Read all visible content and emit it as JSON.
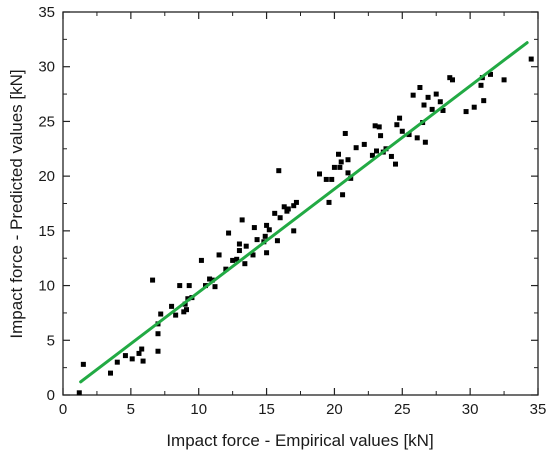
{
  "chart_data": {
    "type": "scatter",
    "xlabel": "Impact force - Empirical values [kN]",
    "ylabel": "Impact force - Predicted values [kN]",
    "xlim": [
      0,
      35
    ],
    "ylim": [
      0,
      35
    ],
    "xticks": [
      "0",
      "5",
      "10",
      "15",
      "20",
      "25",
      "30",
      "35"
    ],
    "yticks": [
      "0",
      "5",
      "10",
      "15",
      "20",
      "25",
      "30",
      "35"
    ],
    "grid": false,
    "marker_color": "#000000",
    "fit_line_color": "#22aa44",
    "fit_line": {
      "x": [
        1.3,
        34.2
      ],
      "y": [
        1.2,
        32.2
      ]
    },
    "points": [
      [
        1.2,
        0.2
      ],
      [
        1.5,
        2.8
      ],
      [
        3.5,
        2.0
      ],
      [
        4.0,
        3.0
      ],
      [
        4.6,
        3.6
      ],
      [
        5.1,
        3.3
      ],
      [
        5.6,
        3.8
      ],
      [
        5.8,
        4.2
      ],
      [
        5.9,
        3.1
      ],
      [
        6.6,
        10.5
      ],
      [
        7.0,
        5.6
      ],
      [
        7.0,
        4.0
      ],
      [
        7.0,
        6.5
      ],
      [
        7.2,
        7.4
      ],
      [
        8.0,
        8.1
      ],
      [
        8.3,
        7.3
      ],
      [
        8.6,
        10.0
      ],
      [
        8.9,
        7.6
      ],
      [
        9.0,
        8.3
      ],
      [
        9.1,
        7.8
      ],
      [
        9.2,
        8.8
      ],
      [
        9.3,
        10.0
      ],
      [
        9.5,
        8.9
      ],
      [
        10.2,
        12.3
      ],
      [
        10.5,
        10.0
      ],
      [
        10.8,
        10.6
      ],
      [
        11.0,
        10.5
      ],
      [
        11.2,
        9.9
      ],
      [
        11.5,
        12.8
      ],
      [
        12.0,
        11.5
      ],
      [
        12.2,
        14.8
      ],
      [
        12.5,
        12.3
      ],
      [
        12.8,
        12.4
      ],
      [
        13.0,
        13.2
      ],
      [
        13.0,
        13.8
      ],
      [
        13.2,
        16.0
      ],
      [
        13.4,
        12.0
      ],
      [
        13.5,
        13.6
      ],
      [
        14.0,
        12.8
      ],
      [
        14.1,
        15.3
      ],
      [
        14.3,
        14.2
      ],
      [
        14.8,
        14.0
      ],
      [
        14.9,
        14.5
      ],
      [
        15.0,
        13.0
      ],
      [
        15.0,
        15.5
      ],
      [
        15.2,
        15.1
      ],
      [
        15.6,
        16.6
      ],
      [
        15.8,
        14.1
      ],
      [
        15.9,
        20.5
      ],
      [
        16.0,
        16.2
      ],
      [
        16.3,
        17.2
      ],
      [
        16.5,
        16.8
      ],
      [
        16.6,
        17.0
      ],
      [
        17.0,
        15.0
      ],
      [
        17.0,
        17.3
      ],
      [
        17.2,
        17.6
      ],
      [
        18.9,
        20.2
      ],
      [
        19.4,
        19.7
      ],
      [
        19.6,
        17.6
      ],
      [
        19.8,
        19.7
      ],
      [
        20.0,
        20.8
      ],
      [
        20.3,
        22.0
      ],
      [
        20.4,
        20.8
      ],
      [
        20.5,
        21.3
      ],
      [
        20.6,
        18.3
      ],
      [
        20.8,
        23.9
      ],
      [
        21.0,
        21.5
      ],
      [
        21.0,
        20.3
      ],
      [
        21.2,
        19.8
      ],
      [
        21.6,
        22.6
      ],
      [
        22.2,
        22.9
      ],
      [
        22.8,
        21.9
      ],
      [
        23.0,
        24.6
      ],
      [
        23.1,
        22.3
      ],
      [
        23.3,
        24.5
      ],
      [
        23.4,
        23.7
      ],
      [
        23.6,
        22.2
      ],
      [
        23.8,
        22.5
      ],
      [
        24.2,
        21.8
      ],
      [
        24.5,
        21.1
      ],
      [
        24.6,
        24.7
      ],
      [
        24.8,
        25.3
      ],
      [
        25.0,
        24.1
      ],
      [
        25.5,
        23.8
      ],
      [
        25.8,
        27.4
      ],
      [
        26.1,
        23.5
      ],
      [
        26.3,
        28.1
      ],
      [
        26.5,
        24.9
      ],
      [
        26.6,
        26.5
      ],
      [
        26.7,
        23.1
      ],
      [
        26.9,
        27.2
      ],
      [
        27.2,
        26.1
      ],
      [
        27.5,
        27.5
      ],
      [
        27.8,
        26.8
      ],
      [
        28.0,
        26.0
      ],
      [
        28.5,
        29.0
      ],
      [
        28.7,
        28.8
      ],
      [
        29.7,
        25.9
      ],
      [
        30.3,
        26.3
      ],
      [
        30.8,
        28.3
      ],
      [
        30.9,
        29.0
      ],
      [
        31.0,
        26.9
      ],
      [
        31.5,
        29.3
      ],
      [
        32.5,
        28.8
      ],
      [
        34.5,
        30.7
      ]
    ]
  }
}
